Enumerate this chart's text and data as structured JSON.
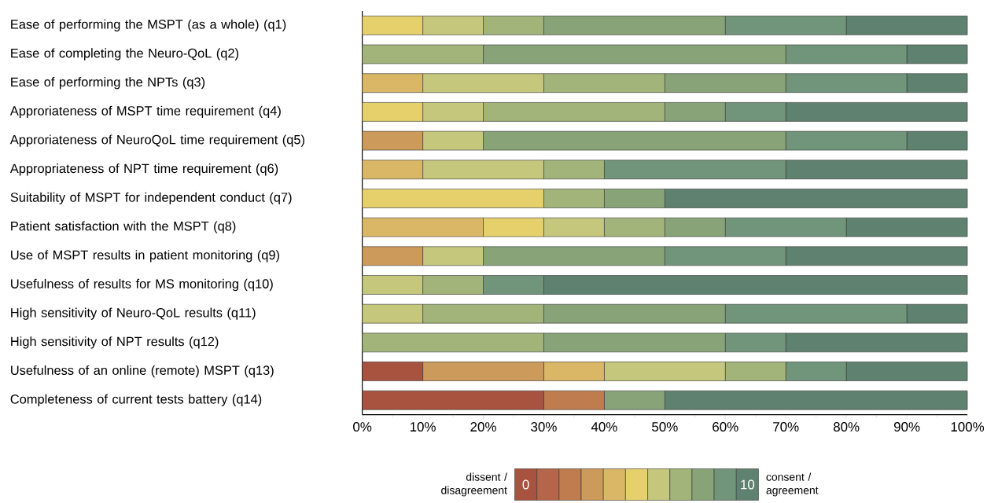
{
  "chart_data": {
    "type": "bar",
    "orientation": "horizontal",
    "stacked": true,
    "legend": "bottom",
    "categories": [
      "Ease of performing the MSPT (as a whole) (q1)",
      "Ease of completing the Neuro-QoL (q2)",
      "Ease of performing the NPTs (q3)",
      "Approriateness of MSPT time requirement (q4)",
      "Approriateness of NeuroQoL time requirement (q5)",
      "Appropriateness of NPT time requirement (q6)",
      "Suitability of MSPT for independent conduct (q7)",
      "Patient satisfaction with the MSPT (q8)",
      "Use of MSPT results in patient monitoring (q9)",
      "Usefulness of results for MS monitoring (q10)",
      "High sensitivity of Neuro-QoL results (q11)",
      "High sensitivity of NPT results (q12)",
      "Usefulness of an online (remote) MSPT (q13)",
      "Completeness of current tests battery (q14)"
    ],
    "series": [
      {
        "name": "0",
        "color": "#a8533f",
        "values": [
          0,
          0,
          0,
          0,
          0,
          0,
          0,
          0,
          0,
          0,
          0,
          0,
          10,
          30
        ]
      },
      {
        "color": "#b4654a",
        "values": [
          0,
          0,
          0,
          0,
          0,
          0,
          0,
          0,
          0,
          0,
          0,
          0,
          0,
          0
        ]
      },
      {
        "color": "#bf7d4f",
        "values": [
          0,
          0,
          0,
          0,
          0,
          0,
          0,
          0,
          0,
          0,
          0,
          0,
          0,
          10
        ]
      },
      {
        "color": "#cc9a5a",
        "values": [
          0,
          0,
          0,
          0,
          10,
          0,
          0,
          0,
          10,
          0,
          0,
          0,
          20,
          0
        ]
      },
      {
        "color": "#dab766",
        "values": [
          0,
          0,
          10,
          0,
          0,
          10,
          0,
          20,
          0,
          0,
          0,
          0,
          10,
          0
        ]
      },
      {
        "color": "#e6d06c",
        "values": [
          10,
          0,
          0,
          10,
          0,
          0,
          30,
          10,
          0,
          0,
          0,
          0,
          0,
          0
        ]
      },
      {
        "color": "#c4c77c",
        "values": [
          10,
          0,
          20,
          10,
          10,
          20,
          0,
          10,
          10,
          10,
          10,
          0,
          20,
          0
        ]
      },
      {
        "color": "#a2b47a",
        "values": [
          10,
          20,
          20,
          30,
          0,
          10,
          10,
          10,
          0,
          10,
          20,
          30,
          10,
          0
        ]
      },
      {
        "color": "#87a377",
        "values": [
          30,
          50,
          20,
          10,
          50,
          0,
          10,
          10,
          30,
          0,
          30,
          30,
          0,
          10
        ]
      },
      {
        "color": "#71957a",
        "values": [
          20,
          20,
          20,
          10,
          20,
          30,
          0,
          20,
          20,
          10,
          30,
          10,
          10,
          0
        ]
      },
      {
        "name": "10",
        "color": "#5f8270",
        "values": [
          20,
          10,
          10,
          30,
          10,
          30,
          50,
          20,
          30,
          70,
          10,
          30,
          20,
          50
        ]
      }
    ],
    "xlim": [
      0,
      100
    ],
    "xticks": [
      {
        "value": 0,
        "label": "0%"
      },
      {
        "value": 10,
        "label": "10%"
      },
      {
        "value": 20,
        "label": "20%"
      },
      {
        "value": 30,
        "label": "30%"
      },
      {
        "value": 40,
        "label": "40%"
      },
      {
        "value": 50,
        "label": "50%"
      },
      {
        "value": 60,
        "label": "60%"
      },
      {
        "value": 70,
        "label": "70%"
      },
      {
        "value": 80,
        "label": "80%"
      },
      {
        "value": 90,
        "label": "90%"
      },
      {
        "value": 100,
        "label": "100%"
      }
    ],
    "annotations": [
      "dissent / disagreement",
      "consent / agreement"
    ]
  }
}
